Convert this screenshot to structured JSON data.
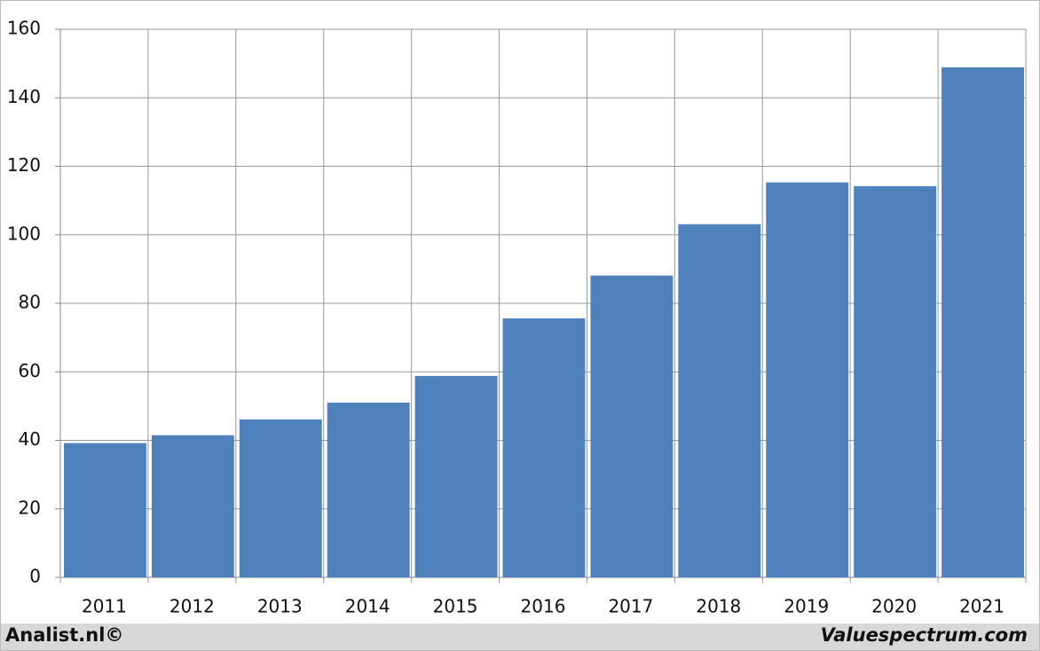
{
  "chart_data": {
    "type": "bar",
    "categories": [
      "2011",
      "2012",
      "2013",
      "2014",
      "2015",
      "2016",
      "2017",
      "2018",
      "2019",
      "2020",
      "2021"
    ],
    "values": [
      39.2,
      41.5,
      46.1,
      51,
      58.8,
      75.6,
      88.1,
      103.1,
      115.3,
      114.2,
      148.9
    ],
    "color": "#4f81bd",
    "ylim": [
      0,
      160
    ],
    "yticks": [
      0,
      20,
      40,
      60,
      80,
      100,
      120,
      140,
      160
    ],
    "grid": true
  },
  "footer": {
    "left": "Analist.nl©",
    "right": "Valuespectrum.com"
  }
}
